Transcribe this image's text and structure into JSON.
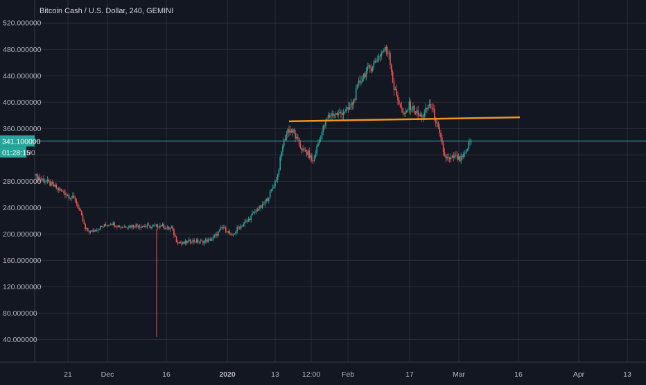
{
  "chart_data": {
    "type": "candlestick",
    "title": "Bitcoin Cash / U.S. Dollar, 240, GEMINI",
    "ylim": [
      0,
      540
    ],
    "y_ticks": [
      40,
      80,
      120,
      160,
      200,
      240,
      280,
      320,
      360,
      400,
      440,
      480,
      520
    ],
    "y_tick_labels": [
      "40.000000",
      "80.000000",
      "120.000000",
      "160.000000",
      "200.000000",
      "240.000000",
      "280.000000",
      "",
      "360.000000",
      "400.000000",
      "440.000000",
      "480.000000",
      "520.000000"
    ],
    "x_ticks": [
      {
        "label": "21",
        "bold": false
      },
      {
        "label": "Dec",
        "bold": false
      },
      {
        "label": "16",
        "bold": false
      },
      {
        "label": "2020",
        "bold": true
      },
      {
        "label": "13",
        "bold": false
      },
      {
        "label": "12:00",
        "bold": false
      },
      {
        "label": "Feb",
        "bold": false
      },
      {
        "label": "17",
        "bold": false
      },
      {
        "label": "Mar",
        "bold": false
      },
      {
        "label": "16",
        "bold": false
      },
      {
        "label": "Apr",
        "bold": false
      },
      {
        "label": "13",
        "bold": false
      }
    ],
    "grid": true,
    "last_price": 341.1,
    "last_price_label": "341.100000",
    "countdown_label": "01:28:15",
    "colors": {
      "background": "#131722",
      "grid": "#2a2e39",
      "up": "#26a69a",
      "down": "#ef5350",
      "trendline": "#f7931a",
      "price_line": "#26a69a",
      "text": "#b2b5be"
    },
    "trendline": {
      "y_start": 371,
      "y_end": 377
    },
    "price_path_approx": [
      [
        0,
        288
      ],
      [
        2,
        281
      ],
      [
        4,
        271
      ],
      [
        6,
        262
      ],
      [
        8,
        252
      ],
      [
        9,
        232
      ],
      [
        10,
        207
      ],
      [
        11,
        203
      ],
      [
        13,
        210
      ],
      [
        15,
        217
      ],
      [
        17,
        211
      ],
      [
        20,
        213
      ],
      [
        23,
        211
      ],
      [
        25,
        213
      ],
      [
        26.5,
        208
      ],
      [
        27,
        210
      ],
      [
        28,
        190
      ],
      [
        29,
        185
      ],
      [
        31,
        190
      ],
      [
        33,
        188
      ],
      [
        35,
        192
      ],
      [
        36,
        200
      ],
      [
        37,
        210
      ],
      [
        38,
        205
      ],
      [
        39,
        196
      ],
      [
        40,
        208
      ],
      [
        42,
        220
      ],
      [
        44,
        238
      ],
      [
        45,
        242
      ],
      [
        46,
        254
      ],
      [
        47,
        270
      ],
      [
        48,
        290
      ],
      [
        49,
        335
      ],
      [
        50,
        358
      ],
      [
        51,
        355
      ],
      [
        52,
        340
      ],
      [
        53,
        326
      ],
      [
        54,
        322
      ],
      [
        55,
        310
      ],
      [
        56,
        338
      ],
      [
        57,
        360
      ],
      [
        58,
        378
      ],
      [
        59,
        383
      ],
      [
        60,
        381
      ],
      [
        61,
        386
      ],
      [
        62,
        388
      ],
      [
        63,
        402
      ],
      [
        64,
        428
      ],
      [
        65,
        442
      ],
      [
        66,
        450
      ],
      [
        67,
        458
      ],
      [
        68,
        470
      ],
      [
        69,
        480
      ],
      [
        70,
        476
      ],
      [
        71,
        420
      ],
      [
        72,
        400
      ],
      [
        73,
        378
      ],
      [
        74,
        395
      ],
      [
        75,
        388
      ],
      [
        76,
        378
      ],
      [
        77,
        382
      ],
      [
        78,
        398
      ],
      [
        79,
        380
      ],
      [
        80,
        350
      ],
      [
        81,
        318
      ],
      [
        82,
        312
      ],
      [
        83,
        318
      ],
      [
        84,
        312
      ],
      [
        85,
        320
      ],
      [
        86,
        341
      ]
    ],
    "spike_low": 44
  }
}
